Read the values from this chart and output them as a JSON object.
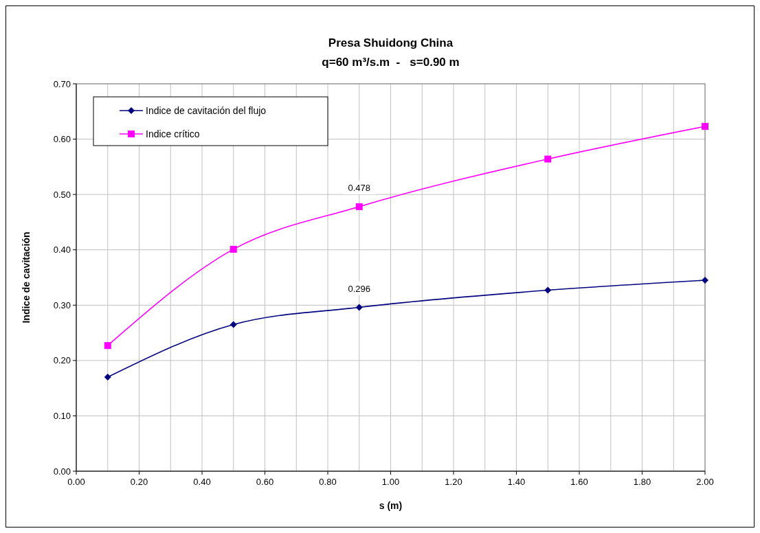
{
  "chart_data": {
    "type": "line",
    "title": "Presa Shuidong China",
    "subtitle": "q=60 m³/s.m  -   s=0.90 m",
    "xlabel": "s (m)",
    "ylabel": "Indice de cavitación",
    "x": [
      0.1,
      0.5,
      0.9,
      1.5,
      2.0
    ],
    "series": [
      {
        "name": "Indice de cavitación del flujo",
        "color": "#000080",
        "marker": "diamond",
        "values": [
          0.17,
          0.265,
          0.296,
          0.327,
          0.345
        ],
        "value_labels": [
          null,
          null,
          "0.296",
          null,
          null
        ]
      },
      {
        "name": "Indice crítico",
        "color": "#ff00ff",
        "marker": "square",
        "values": [
          0.227,
          0.401,
          0.478,
          0.564,
          0.623
        ],
        "value_labels": [
          null,
          null,
          "0.478",
          null,
          null
        ]
      }
    ],
    "xlim": [
      0,
      2
    ],
    "xticks": [
      {
        "value": 0,
        "label": "0.00"
      },
      {
        "value": 0.2,
        "label": "0.20"
      },
      {
        "value": 0.4,
        "label": "0.40"
      },
      {
        "value": 0.6,
        "label": "0.60"
      },
      {
        "value": 0.8,
        "label": "0.80"
      },
      {
        "value": 1,
        "label": "1.00"
      },
      {
        "value": 1.2,
        "label": "1.20"
      },
      {
        "value": 1.4,
        "label": "1.40"
      },
      {
        "value": 1.6,
        "label": "1.60"
      },
      {
        "value": 1.8,
        "label": "1.80"
      },
      {
        "value": 2,
        "label": "2.00"
      }
    ],
    "ylim": [
      0,
      0.7
    ],
    "yticks": [
      {
        "value": 0,
        "label": "0.00"
      },
      {
        "value": 0.1,
        "label": "0.10"
      },
      {
        "value": 0.2,
        "label": "0.20"
      },
      {
        "value": 0.3,
        "label": "0.30"
      },
      {
        "value": 0.4,
        "label": "0.40"
      },
      {
        "value": 0.5,
        "label": "0.50"
      },
      {
        "value": 0.6,
        "label": "0.60"
      },
      {
        "value": 0.7,
        "label": "0.70"
      }
    ],
    "grid": true,
    "legend": "top left",
    "line_style": "solid"
  }
}
